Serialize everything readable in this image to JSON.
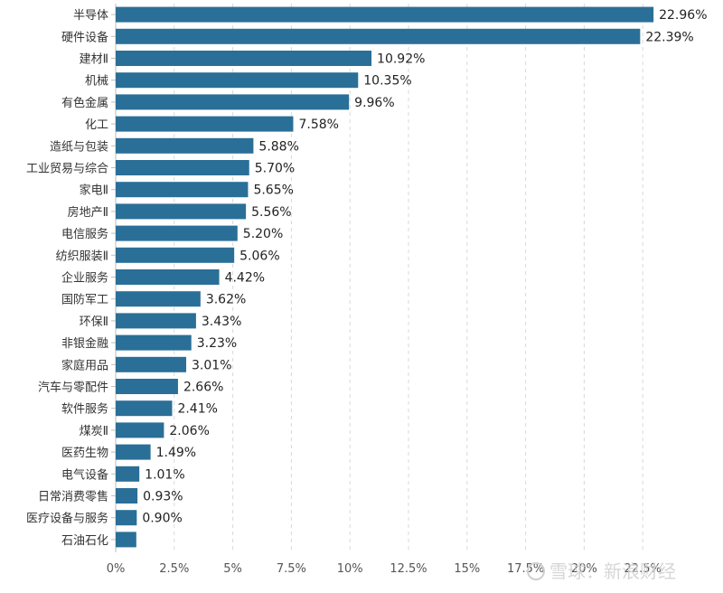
{
  "chart_data": {
    "type": "bar",
    "orientation": "horizontal",
    "categories": [
      "半导体",
      "硬件设备",
      "建材Ⅱ",
      "机械",
      "有色金属",
      "化工",
      "造纸与包装",
      "工业贸易与综合",
      "家电Ⅱ",
      "房地产Ⅱ",
      "电信服务",
      "纺织服装Ⅱ",
      "企业服务",
      "国防军工",
      "环保Ⅱ",
      "非银金融",
      "家庭用品",
      "汽车与零配件",
      "软件服务",
      "煤炭Ⅱ",
      "医药生物",
      "电气设备",
      "日常消费零售",
      "医疗设备与服务",
      "石油石化"
    ],
    "values": [
      22.96,
      22.39,
      10.92,
      10.35,
      9.96,
      7.58,
      5.88,
      5.7,
      5.65,
      5.56,
      5.2,
      5.06,
      4.42,
      3.62,
      3.43,
      3.23,
      3.01,
      2.66,
      2.41,
      2.06,
      1.49,
      1.01,
      0.93,
      0.9,
      0.88
    ],
    "value_labels": [
      "22.96%",
      "22.39%",
      "10.92%",
      "10.35%",
      "9.96%",
      "7.58%",
      "5.88%",
      "5.70%",
      "5.65%",
      "5.56%",
      "5.20%",
      "5.06%",
      "4.42%",
      "3.62%",
      "3.43%",
      "3.23%",
      "3.01%",
      "2.66%",
      "2.41%",
      "2.06%",
      "1.49%",
      "1.01%",
      "0.93%",
      "0.90%",
      ""
    ],
    "x_ticks": [
      "0%",
      "2.5%",
      "5%",
      "7.5%",
      "10%",
      "12.5%",
      "15%",
      "17.5%",
      "20%",
      "22.5%"
    ],
    "xlim": [
      0,
      25
    ],
    "grid": true,
    "bar_color": "#2a6f97"
  },
  "watermark": "雪球：新浪财经"
}
